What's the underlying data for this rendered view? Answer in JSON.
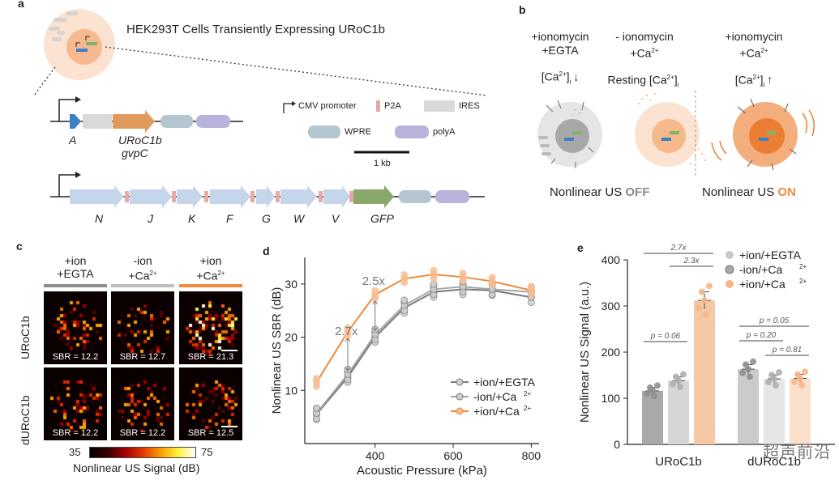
{
  "panel_a": {
    "label": "a",
    "title": "HEK293T Cells Transiently Expressing URoC1b",
    "legend": {
      "cmv": "CMV promoter",
      "p2a": "P2A",
      "ires": "IRES",
      "wpre": "WPRE",
      "polya": "polyA",
      "scale": "1 kb"
    },
    "top_gene_labels": {
      "a": "A",
      "uroc1b": "URoC1b",
      "gvpc": "gvpC"
    },
    "bottom_gene_labels": [
      "N",
      "J",
      "K",
      "F",
      "G",
      "W",
      "V",
      "GFP"
    ]
  },
  "panel_b": {
    "label": "b",
    "conditions": [
      {
        "line1": "+ionomycin",
        "line2": "+EGTA",
        "ca": "[Ca",
        "arrow": "↓"
      },
      {
        "line1": "- ionomycin",
        "line2": "+Ca",
        "ca": "Resting [Ca",
        "arrow": ""
      },
      {
        "line1": "+ionomycin",
        "line2": "+Ca",
        "ca": "[Ca",
        "arrow": "↑"
      }
    ],
    "off_text": "Nonlinear US ",
    "off_word": "OFF",
    "on_text": "Nonlinear US ",
    "on_word": "ON"
  },
  "panel_c": {
    "label": "c",
    "col_headers": [
      {
        "l1": "+ion",
        "l2": "+EGTA"
      },
      {
        "l1": "-ion",
        "l2": "+Ca"
      },
      {
        "l1": "+ion",
        "l2": "+Ca"
      }
    ],
    "row_labels": [
      "URoC1b",
      "dURoC1b"
    ],
    "sbr": [
      [
        "SBR = 12.2",
        "SBR = 12.7",
        "SBR = 21.3"
      ],
      [
        "SBR = 12.2",
        "SBR = 12.2",
        "SBR = 12.5"
      ]
    ],
    "colorbar_min": "35",
    "colorbar_max": "75",
    "colorbar_label": "Nonlinear US Signal (dB)"
  },
  "chart_data": [
    {
      "panel": "d",
      "type": "line",
      "xlabel": "Acoustic Pressure (kPa)",
      "ylabel": "Nonlinear US SBR (dB)",
      "x": [
        250,
        330,
        400,
        475,
        550,
        625,
        700,
        800
      ],
      "xlim": [
        220,
        820
      ],
      "ylim": [
        0,
        35
      ],
      "xticks": [
        400,
        600,
        800
      ],
      "yticks": [
        10,
        20,
        30
      ],
      "annotations": [
        {
          "text": "2.7x",
          "x": 330
        },
        {
          "text": "2.5x",
          "x": 400
        }
      ],
      "legend_position": "bottom-right",
      "series": [
        {
          "name": "+ion/+EGTA",
          "color": "#7a7a7a",
          "values": [
            5.5,
            12.5,
            20.0,
            25.5,
            28.5,
            29.0,
            28.8,
            27.5
          ]
        },
        {
          "name": "-ion/+Ca",
          "color": "#a5a5a5",
          "values": [
            5.7,
            13.0,
            20.5,
            26.0,
            29.0,
            29.5,
            29.0,
            28.5
          ]
        },
        {
          "name": "+ion/+Ca",
          "color": "#f08a3c",
          "values": [
            11.5,
            21.0,
            28.0,
            31.0,
            31.8,
            31.3,
            30.5,
            28.8
          ]
        }
      ]
    },
    {
      "panel": "e",
      "type": "bar",
      "ylabel": "Nonlinear US Signal (a.u.)",
      "ylim": [
        0,
        400
      ],
      "yticks": [
        0,
        100,
        200,
        300,
        400
      ],
      "categories": [
        "URoC1b",
        "dURoC1b"
      ],
      "legend_position": "top-right",
      "series": [
        {
          "name": "+ion/+EGTA",
          "color": "#a9a9a9",
          "values": [
            116,
            163
          ]
        },
        {
          "name": "-ion/+Ca",
          "color": "#d6d6d6",
          "values": [
            138,
            142
          ]
        },
        {
          "name": "+ion/+Ca",
          "color": "#f6c9a6",
          "values": [
            312,
            143
          ]
        }
      ],
      "brackets": [
        {
          "text": "2.7x",
          "group": 0,
          "from": 0,
          "to": 2
        },
        {
          "text": "2.3x",
          "group": 0,
          "from": 1,
          "to": 2
        },
        {
          "text": "p = 0.06",
          "group": 0,
          "from": 0,
          "to": 1
        },
        {
          "text": "p = 0.05",
          "group": 1,
          "from": 0,
          "to": 2
        },
        {
          "text": "p = 0.20",
          "group": 1,
          "from": 0,
          "to": 1
        },
        {
          "text": "p = 0.81",
          "group": 1,
          "from": 1,
          "to": 2
        }
      ]
    }
  ],
  "labels": {
    "d": "d",
    "e": "e",
    "ca_sup": "2+",
    "ca_sub": "i"
  },
  "watermark": "超声前沿"
}
